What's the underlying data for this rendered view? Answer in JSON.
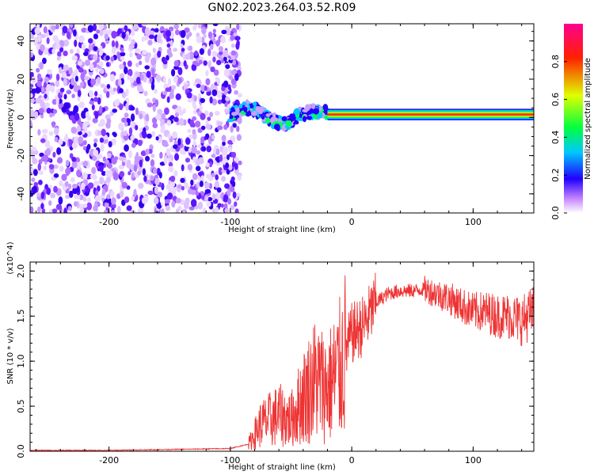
{
  "title": "GN02.2023.264.03.52.R09",
  "chart_data": [
    {
      "type": "heatmap",
      "xlabel": "Height of straight line (km)",
      "ylabel": "Frequency (Hz)",
      "xlim": [
        -265,
        150
      ],
      "ylim": [
        -50,
        49
      ],
      "x_ticks": [
        -200,
        -100,
        0,
        100
      ],
      "y_ticks": [
        -40,
        -20,
        0,
        20,
        40
      ],
      "colorbar": {
        "label": "Normalized spectral amplitude",
        "range": [
          0.0,
          1.0
        ],
        "ticks": [
          0.0,
          0.2,
          0.4,
          0.6,
          0.8
        ],
        "colormap": [
          "#ffffff",
          "#a040ff",
          "#2000ff",
          "#00c8ff",
          "#00ff40",
          "#e0ff00",
          "#ff2000",
          "#ff0090"
        ]
      },
      "regions": [
        {
          "x": [
            -265,
            -100
          ],
          "description": "broadband noise",
          "amplitude": 0.1
        },
        {
          "x": [
            -100,
            -20
          ],
          "description": "wavy tone",
          "amplitude": 0.3
        },
        {
          "x": [
            -20,
            150
          ],
          "description": "stable tone",
          "frequency": 1.5,
          "amplitude": 0.9
        }
      ]
    },
    {
      "type": "line",
      "xlabel": "Height of straight line (km)",
      "ylabel": "SNR (10 * v/v)",
      "y_multiplier": "(x10^4)",
      "xlim": [
        -265,
        150
      ],
      "ylim": [
        0.0,
        2.1
      ],
      "x_ticks": [
        -200,
        -100,
        0,
        100
      ],
      "y_ticks": [
        0.0,
        0.5,
        1.0,
        1.5,
        2.0
      ],
      "series": [
        {
          "color": "#ee3333",
          "x": [
            -265,
            -200,
            -150,
            -100,
            -85,
            -75,
            -60,
            -50,
            -40,
            -30,
            -20,
            -10,
            0,
            10,
            20,
            30,
            40,
            50,
            60,
            70,
            80,
            90,
            100,
            110,
            120,
            130,
            140,
            150
          ],
          "y": [
            0.01,
            0.01,
            0.02,
            0.03,
            0.08,
            0.3,
            0.4,
            0.35,
            0.6,
            0.8,
            0.7,
            0.9,
            1.3,
            1.4,
            1.65,
            1.75,
            1.78,
            1.78,
            1.8,
            1.75,
            1.7,
            1.62,
            1.55,
            1.55,
            1.5,
            1.5,
            1.45,
            1.55
          ]
        }
      ]
    }
  ]
}
